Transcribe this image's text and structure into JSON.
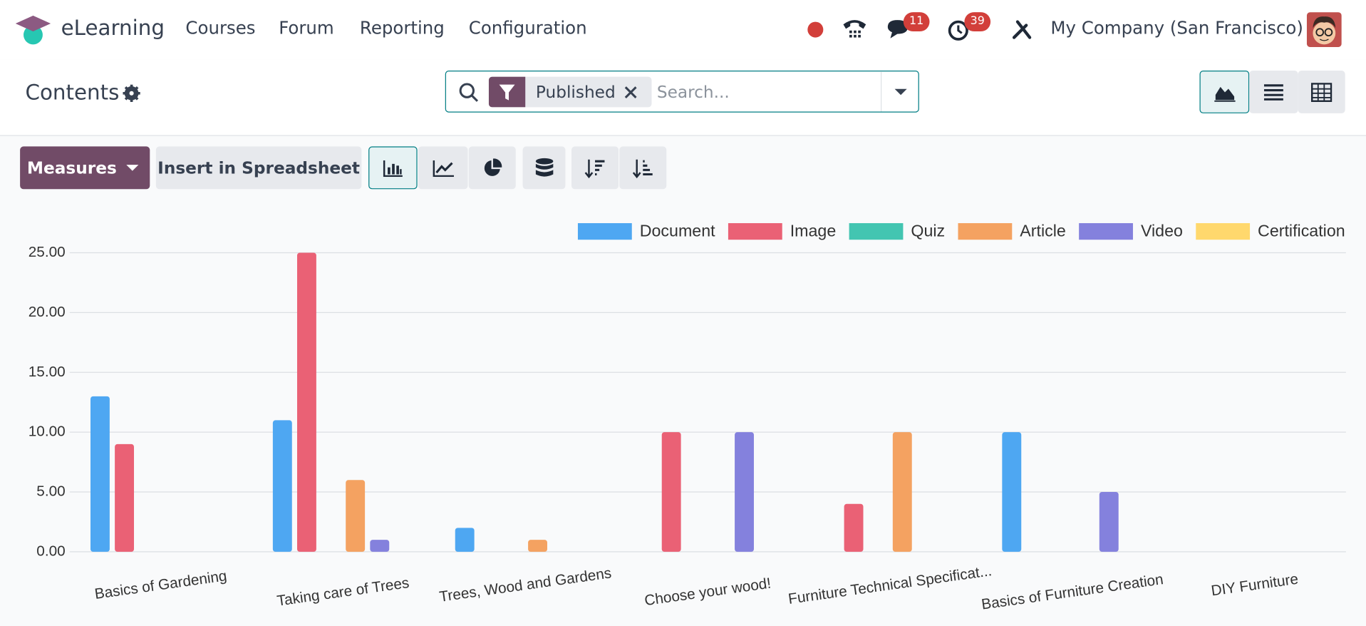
{
  "nav": {
    "app": "eLearning",
    "menu": [
      "Courses",
      "Forum",
      "Reporting",
      "Configuration"
    ],
    "badges": [
      11,
      39
    ],
    "company": "My Company (San Francisco)"
  },
  "control_panel": {
    "title": "Contents",
    "facet": "Published",
    "search_placeholder": "Search..."
  },
  "toolbar": {
    "measures": "Measures",
    "insert": "Insert in Spreadsheet"
  },
  "chart_data": {
    "type": "bar",
    "categories": [
      "Basics of Gardening",
      "Taking care of Trees",
      "Trees, Wood and Gardens",
      "Choose your wood!",
      "Furniture Technical Specificat...",
      "Basics of Furniture Creation",
      "DIY Furniture"
    ],
    "series": [
      {
        "name": "Document",
        "color": "#4ea7f2",
        "values": [
          13,
          11,
          2,
          0,
          0,
          10,
          0
        ]
      },
      {
        "name": "Image",
        "color": "#ea6175",
        "values": [
          9,
          25,
          0,
          10,
          4,
          0,
          0
        ]
      },
      {
        "name": "Quiz",
        "color": "#43c5b1",
        "values": [
          0,
          0,
          0,
          0,
          0,
          0,
          0
        ]
      },
      {
        "name": "Article",
        "color": "#f4a261",
        "values": [
          0,
          6,
          1,
          0,
          10,
          0,
          0
        ]
      },
      {
        "name": "Video",
        "color": "#8481dd",
        "values": [
          0,
          1,
          0,
          10,
          0,
          5,
          0
        ]
      },
      {
        "name": "Certification",
        "color": "#ffd86d",
        "values": [
          0,
          0,
          0,
          0,
          0,
          0,
          0
        ]
      }
    ],
    "ylim": [
      0,
      25
    ],
    "yticks": [
      {
        "value": 0,
        "label": "0.00"
      },
      {
        "value": 5,
        "label": "5.00"
      },
      {
        "value": 10,
        "label": "10.00"
      },
      {
        "value": 15,
        "label": "15.00"
      },
      {
        "value": 20,
        "label": "20.00"
      },
      {
        "value": 25,
        "label": "25.00"
      }
    ],
    "grid": true,
    "legend": "top-right"
  }
}
